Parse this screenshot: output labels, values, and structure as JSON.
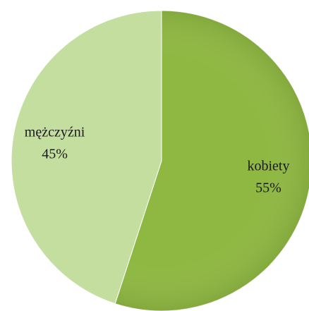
{
  "chart_data": {
    "type": "pie",
    "categories": [
      "kobiety",
      "mężczyźni"
    ],
    "values": [
      55,
      45
    ],
    "value_labels": [
      "55%",
      "45%"
    ],
    "colors": [
      "#8fb843",
      "#c4dea0"
    ],
    "start_angle": 0,
    "direction": "clockwise"
  }
}
